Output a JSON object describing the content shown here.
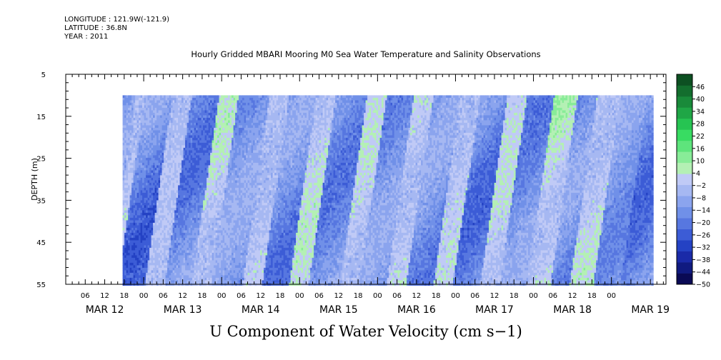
{
  "header": {
    "longitude": "LONGITUDE : 121.9W(-121.9)",
    "latitude": "LATITUDE : 36.8N",
    "year": "YEAR : 2011"
  },
  "chart_data": {
    "type": "heatmap",
    "title": "Hourly Gridded MBARI Mooring M0 Sea Water Temperature and Salinity Observations",
    "variable_title": "U Component of Water Velocity (cm s−1)",
    "ylabel": "DEPTH (m)",
    "y_inverted": true,
    "ylim": [
      5,
      55
    ],
    "y_ticks": [
      "5",
      "15",
      "25",
      "35",
      "45",
      "55"
    ],
    "data_depth_range": [
      10,
      55
    ],
    "x_hour_ticks": [
      "06",
      "12",
      "18",
      "00",
      "06",
      "12",
      "18",
      "00",
      "06",
      "12",
      "18",
      "00",
      "06",
      "12",
      "18",
      "00",
      "06",
      "12",
      "18",
      "00",
      "06",
      "12",
      "18",
      "00",
      "06",
      "12",
      "18",
      "00"
    ],
    "x_date_labels": [
      "MAR 12",
      "MAR 13",
      "MAR 14",
      "MAR 15",
      "MAR 16",
      "MAR 17",
      "MAR 18",
      "MAR 19"
    ],
    "x_days": 7.7,
    "data_time_range_days": [
      0.73,
      7.52
    ],
    "colorbar": {
      "labels": [
        "46",
        "40",
        "34",
        "28",
        "22",
        "16",
        "10",
        "4",
        "−2",
        "−8",
        "−14",
        "−20",
        "−26",
        "−32",
        "−38",
        "−44",
        "−50"
      ],
      "min": -50,
      "max": 52,
      "step": 6,
      "colors": [
        "#0a0a55",
        "#101a80",
        "#1a2aa8",
        "#2442c4",
        "#3c5cd6",
        "#5777e0",
        "#7090e8",
        "#8ba4ee",
        "#a6b8f2",
        "#c0caf6",
        "#b4f0b4",
        "#88ec98",
        "#5ee47c",
        "#38dc62",
        "#26c452",
        "#1fa646",
        "#198a3a",
        "#136e2e",
        "#0d5022"
      ]
    },
    "bands": [
      {
        "t0": 0.73,
        "t1": 0.85,
        "v": 10
      },
      {
        "t0": 0.85,
        "t1": 1.2,
        "v": -25
      },
      {
        "t0": 1.2,
        "t1": 1.45,
        "v": 4
      },
      {
        "t0": 1.45,
        "t1": 1.8,
        "v": -20
      },
      {
        "t0": 1.8,
        "t1": 2.05,
        "v": 12
      },
      {
        "t0": 2.05,
        "t1": 2.45,
        "v": -14
      },
      {
        "t0": 2.45,
        "t1": 2.7,
        "v": 8
      },
      {
        "t0": 2.7,
        "t1": 3.05,
        "v": -20
      },
      {
        "t0": 3.05,
        "t1": 3.3,
        "v": 12
      },
      {
        "t0": 3.3,
        "t1": 3.7,
        "v": -18
      },
      {
        "t0": 3.7,
        "t1": 3.95,
        "v": 10
      },
      {
        "t0": 3.95,
        "t1": 4.3,
        "v": -16
      },
      {
        "t0": 4.3,
        "t1": 4.55,
        "v": 12
      },
      {
        "t0": 4.55,
        "t1": 4.9,
        "v": -18
      },
      {
        "t0": 4.9,
        "t1": 5.15,
        "v": 8
      },
      {
        "t0": 5.15,
        "t1": 5.5,
        "v": -22
      },
      {
        "t0": 5.5,
        "t1": 5.75,
        "v": 10
      },
      {
        "t0": 5.75,
        "t1": 6.1,
        "v": -18
      },
      {
        "t0": 6.1,
        "t1": 6.4,
        "v": 18
      },
      {
        "t0": 6.4,
        "t1": 6.65,
        "v": -20
      },
      {
        "t0": 6.65,
        "t1": 6.95,
        "v": 12
      },
      {
        "t0": 6.95,
        "t1": 7.3,
        "v": -14
      },
      {
        "t0": 7.3,
        "t1": 7.52,
        "v": -22
      }
    ]
  }
}
